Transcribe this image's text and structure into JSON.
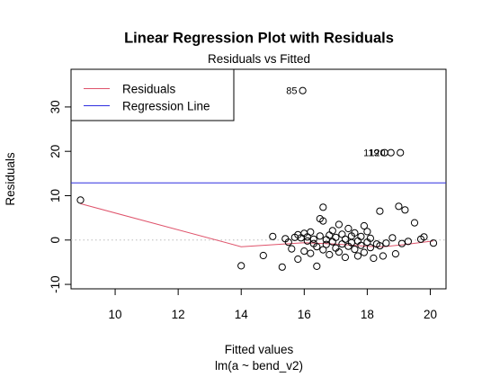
{
  "chart_data": {
    "type": "scatter",
    "title": "Linear Regression Plot with Residuals",
    "subtitle": "Residuals vs Fitted",
    "xlabel": "Fitted values",
    "xlabel2": "lm(a ~ bend_v2)",
    "ylabel": "Residuals",
    "xlim": [
      8.6,
      20.5
    ],
    "ylim": [
      -11,
      38.5
    ],
    "x_ticks": [
      10,
      12,
      14,
      16,
      18,
      20
    ],
    "y_ticks": [
      -10,
      0,
      10,
      20,
      30
    ],
    "legend": {
      "position": "top-left",
      "entries": [
        {
          "label": "Residuals",
          "color": "#DF536B"
        },
        {
          "label": "Regression Line",
          "color": "#2E2EE0"
        }
      ]
    },
    "zero_line": 0,
    "regression_line": {
      "y": 12.9
    },
    "smooth_line": [
      [
        8.9,
        8.2
      ],
      [
        14.0,
        -1.5
      ],
      [
        16.0,
        -0.6
      ],
      [
        17.0,
        -0.9
      ],
      [
        18.0,
        -1.4
      ],
      [
        18.5,
        -1.5
      ],
      [
        19.2,
        -1.0
      ],
      [
        20.1,
        -0.2
      ]
    ],
    "outlier_labels": [
      {
        "label": "85",
        "x": 15.95,
        "y": 33.7
      },
      {
        "label": "119",
        "x": 18.55,
        "y": 19.7
      },
      {
        "label": "120",
        "x": 18.75,
        "y": 19.7
      }
    ],
    "points": [
      [
        8.9,
        9.0
      ],
      [
        14.0,
        -5.8
      ],
      [
        14.7,
        -3.5
      ],
      [
        15.0,
        0.8
      ],
      [
        15.3,
        -6.1
      ],
      [
        15.4,
        0.3
      ],
      [
        15.5,
        -0.5
      ],
      [
        15.6,
        -2.0
      ],
      [
        15.7,
        0.6
      ],
      [
        15.8,
        -4.3
      ],
      [
        15.8,
        1.2
      ],
      [
        15.9,
        0.5
      ],
      [
        15.95,
        33.7
      ],
      [
        16.0,
        -2.5
      ],
      [
        16.0,
        1.5
      ],
      [
        16.1,
        -0.2
      ],
      [
        16.1,
        0.7
      ],
      [
        16.2,
        -3.0
      ],
      [
        16.2,
        1.8
      ],
      [
        16.3,
        -0.8
      ],
      [
        16.3,
        0.2
      ],
      [
        16.4,
        -5.9
      ],
      [
        16.4,
        -1.5
      ],
      [
        16.5,
        4.8
      ],
      [
        16.5,
        0.9
      ],
      [
        16.6,
        -2.2
      ],
      [
        16.6,
        4.3
      ],
      [
        16.6,
        7.4
      ],
      [
        16.7,
        0.1
      ],
      [
        16.7,
        -1.0
      ],
      [
        16.8,
        -3.3
      ],
      [
        16.8,
        1.1
      ],
      [
        16.9,
        -0.4
      ],
      [
        16.9,
        2.1
      ],
      [
        17.0,
        -1.8
      ],
      [
        17.0,
        0.6
      ],
      [
        17.1,
        3.5
      ],
      [
        17.1,
        -2.7
      ],
      [
        17.2,
        -0.9
      ],
      [
        17.2,
        1.3
      ],
      [
        17.3,
        -3.9
      ],
      [
        17.3,
        0.2
      ],
      [
        17.4,
        -1.4
      ],
      [
        17.4,
        2.6
      ],
      [
        17.5,
        -0.6
      ],
      [
        17.5,
        0.9
      ],
      [
        17.6,
        -2.1
      ],
      [
        17.6,
        1.6
      ],
      [
        17.7,
        -3.6
      ],
      [
        17.7,
        -0.2
      ],
      [
        17.8,
        0.8
      ],
      [
        17.8,
        -1.2
      ],
      [
        17.9,
        3.2
      ],
      [
        17.9,
        -2.8
      ],
      [
        18.0,
        -0.5
      ],
      [
        18.0,
        1.9
      ],
      [
        18.1,
        -1.7
      ],
      [
        18.1,
        0.4
      ],
      [
        18.2,
        -4.1
      ],
      [
        18.3,
        -0.9
      ],
      [
        18.4,
        6.5
      ],
      [
        18.4,
        -1.3
      ],
      [
        18.5,
        -3.6
      ],
      [
        18.55,
        19.7
      ],
      [
        18.6,
        -0.7
      ],
      [
        18.75,
        19.7
      ],
      [
        18.8,
        0.5
      ],
      [
        18.9,
        -3.1
      ],
      [
        19.0,
        7.6
      ],
      [
        19.05,
        19.7
      ],
      [
        19.1,
        -0.8
      ],
      [
        19.2,
        6.8
      ],
      [
        19.3,
        -0.3
      ],
      [
        19.5,
        3.9
      ],
      [
        19.7,
        0.2
      ],
      [
        19.8,
        0.7
      ],
      [
        20.1,
        -0.7
      ]
    ]
  }
}
